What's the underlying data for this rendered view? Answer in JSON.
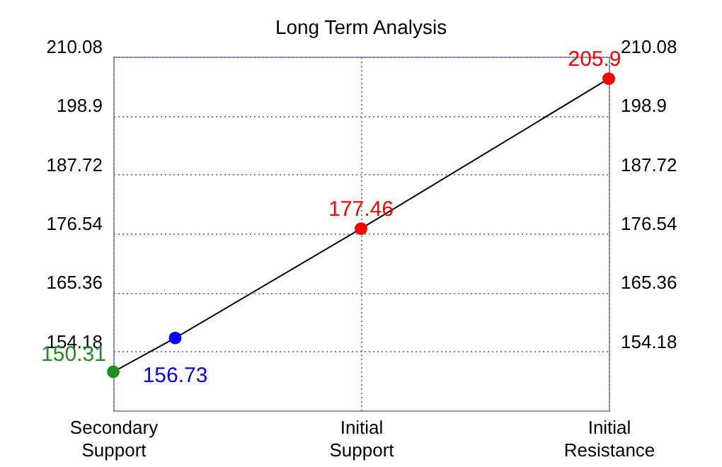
{
  "chart_data": {
    "type": "line",
    "title": "Long Term Analysis",
    "categories": [
      "Secondary Support",
      null,
      null,
      null,
      "Initial Support",
      null,
      null,
      null,
      "Initial Resistance"
    ],
    "series": [
      {
        "color": "#000000",
        "colors": [
          "#228b22",
          "#0000ff",
          null,
          null,
          "#ff0000",
          null,
          null,
          null,
          "#ff0000"
        ],
        "values": [
          150.31,
          156.73,
          null,
          null,
          177.46,
          null,
          null,
          null,
          205.9
        ]
      }
    ],
    "ylim": [
      143,
      210.08
    ],
    "yticks": [
      154.18,
      165.36,
      176.54,
      187.72,
      198.9,
      210.08
    ],
    "y2lim": [
      143,
      210.08
    ],
    "y2ticks": [
      154.18,
      165.36,
      176.54,
      187.72,
      198.9,
      210.08
    ],
    "grid": true,
    "marker": "circle",
    "line_style": "solid",
    "data_labels": true
  }
}
